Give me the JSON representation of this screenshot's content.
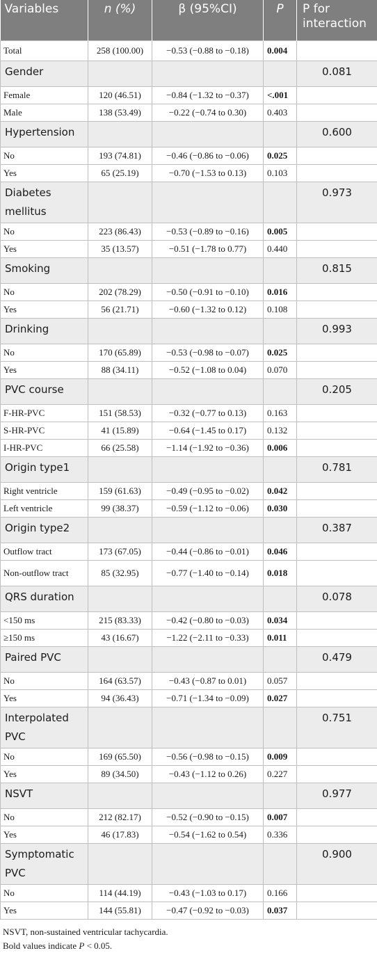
{
  "headers": {
    "variables": "Variables",
    "n": "n (%)",
    "beta": "β (95%CI)",
    "p": "P",
    "interaction": "P for interaction"
  },
  "total": {
    "label": "Total",
    "n": "258 (100.00)",
    "beta": "−0.53 (−0.88 to −0.18)",
    "p": "0.004",
    "p_bold": true
  },
  "groups": [
    {
      "name": "Gender",
      "interaction": "0.081",
      "rows": [
        {
          "label": "Female",
          "n": "120 (46.51)",
          "beta": "−0.84 (−1.32 to −0.37)",
          "p": "<.001",
          "p_bold": true
        },
        {
          "label": "Male",
          "n": "138 (53.49)",
          "beta": "−0.22 (−0.74 to 0.30)",
          "p": "0.403",
          "p_bold": false
        }
      ]
    },
    {
      "name": "Hypertension",
      "interaction": "0.600",
      "rows": [
        {
          "label": "No",
          "n": "193 (74.81)",
          "beta": "−0.46 (−0.86 to −0.06)",
          "p": "0.025",
          "p_bold": true
        },
        {
          "label": "Yes",
          "n": "65 (25.19)",
          "beta": "−0.70 (−1.53 to 0.13)",
          "p": "0.103",
          "p_bold": false
        }
      ]
    },
    {
      "name": "Diabetes mellitus",
      "interaction": "0.973",
      "rows": [
        {
          "label": "No",
          "n": "223 (86.43)",
          "beta": "−0.53 (−0.89 to −0.16)",
          "p": "0.005",
          "p_bold": true
        },
        {
          "label": "Yes",
          "n": "35 (13.57)",
          "beta": "−0.51 (−1.78 to 0.77)",
          "p": "0.440",
          "p_bold": false
        }
      ]
    },
    {
      "name": "Smoking",
      "interaction": "0.815",
      "rows": [
        {
          "label": "No",
          "n": "202 (78.29)",
          "beta": "−0.50 (−0.91 to −0.10)",
          "p": "0.016",
          "p_bold": true
        },
        {
          "label": "Yes",
          "n": "56 (21.71)",
          "beta": "−0.60 (−1.32 to 0.12)",
          "p": "0.108",
          "p_bold": false
        }
      ]
    },
    {
      "name": "Drinking",
      "interaction": "0.993",
      "rows": [
        {
          "label": "No",
          "n": "170 (65.89)",
          "beta": "−0.53 (−0.98 to −0.07)",
          "p": "0.025",
          "p_bold": true
        },
        {
          "label": "Yes",
          "n": "88 (34.11)",
          "beta": "−0.52 (−1.08 to 0.04)",
          "p": "0.070",
          "p_bold": false
        }
      ]
    },
    {
      "name": "PVC course",
      "interaction": "0.205",
      "rows": [
        {
          "label": "F-HR-PVC",
          "n": "151 (58.53)",
          "beta": "−0.32 (−0.77 to 0.13)",
          "p": "0.163",
          "p_bold": false
        },
        {
          "label": "S-HR-PVC",
          "n": "41 (15.89)",
          "beta": "−0.64 (−1.45 to 0.17)",
          "p": "0.132",
          "p_bold": false
        },
        {
          "label": "I-HR-PVC",
          "n": "66 (25.58)",
          "beta": "−1.14 (−1.92 to −0.36)",
          "p": "0.006",
          "p_bold": true
        }
      ]
    },
    {
      "name": "Origin type1",
      "interaction": "0.781",
      "rows": [
        {
          "label": "Right ventricle",
          "n": "159 (61.63)",
          "beta": "−0.49 (−0.95 to −0.02)",
          "p": "0.042",
          "p_bold": true
        },
        {
          "label": "Left ventricle",
          "n": "99 (38.37)",
          "beta": "−0.59 (−1.12 to −0.06)",
          "p": "0.030",
          "p_bold": true
        }
      ]
    },
    {
      "name": "Origin type2",
      "interaction": "0.387",
      "rows": [
        {
          "label": "Outflow tract",
          "n": "173 (67.05)",
          "beta": "−0.44 (−0.86 to −0.01)",
          "p": "0.046",
          "p_bold": true
        },
        {
          "label": "Non-outflow tract",
          "n": "85 (32.95)",
          "beta": "−0.77 (−1.40 to −0.14)",
          "p": "0.018",
          "p_bold": true,
          "tall": true
        }
      ]
    },
    {
      "name": "QRS duration",
      "interaction": "0.078",
      "rows": [
        {
          "label": "<150 ms",
          "n": "215 (83.33)",
          "beta": "−0.42 (−0.80 to −0.03)",
          "p": "0.034",
          "p_bold": true
        },
        {
          "label": "≥150 ms",
          "n": "43 (16.67)",
          "beta": "−1.22 (−2.11 to −0.33)",
          "p": "0.011",
          "p_bold": true
        }
      ]
    },
    {
      "name": "Paired PVC",
      "interaction": "0.479",
      "rows": [
        {
          "label": "No",
          "n": "164 (63.57)",
          "beta": "−0.43 (−0.87 to 0.01)",
          "p": "0.057",
          "p_bold": false
        },
        {
          "label": "Yes",
          "n": "94 (36.43)",
          "beta": "−0.71 (−1.34 to −0.09)",
          "p": "0.027",
          "p_bold": true
        }
      ]
    },
    {
      "name": "Interpolated PVC",
      "interaction": "0.751",
      "rows": [
        {
          "label": "No",
          "n": "169 (65.50)",
          "beta": "−0.56 (−0.98 to −0.15)",
          "p": "0.009",
          "p_bold": true
        },
        {
          "label": "Yes",
          "n": "89 (34.50)",
          "beta": "−0.43 (−1.12 to 0.26)",
          "p": "0.227",
          "p_bold": false
        }
      ]
    },
    {
      "name": "NSVT",
      "interaction": "0.977",
      "rows": [
        {
          "label": "No",
          "n": "212 (82.17)",
          "beta": "−0.52 (−0.90 to −0.15)",
          "p": "0.007",
          "p_bold": true
        },
        {
          "label": "Yes",
          "n": "46 (17.83)",
          "beta": "−0.54 (−1.62 to 0.54)",
          "p": "0.336",
          "p_bold": false
        }
      ]
    },
    {
      "name": "Symptomatic PVC",
      "interaction": "0.900",
      "rows": [
        {
          "label": "No",
          "n": "114 (44.19)",
          "beta": "−0.43 (−1.03 to 0.17)",
          "p": "0.166",
          "p_bold": false
        },
        {
          "label": "Yes",
          "n": "144 (55.81)",
          "beta": "−0.47 (−0.92 to −0.03)",
          "p": "0.037",
          "p_bold": true
        }
      ]
    }
  ],
  "footnotes": {
    "abbrev": "NSVT, non-sustained ventricular tachycardia.",
    "bold_prefix": "Bold values indicate ",
    "bold_p": "P",
    "bold_suffix": " < 0.05."
  }
}
